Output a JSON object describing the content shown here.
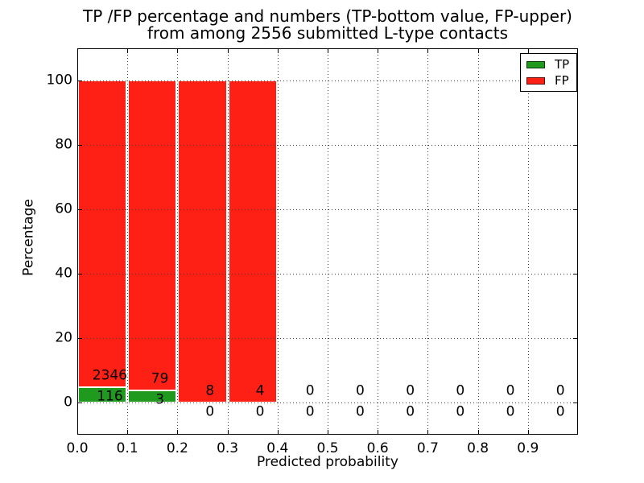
{
  "figure": {
    "title_line1": "TP /FP percentage and numbers (TP-bottom value, FP-upper)",
    "title_line2": "from among 2556 submitted L-type contacts",
    "xlabel": "Predicted probability",
    "ylabel": "Percentage"
  },
  "legend": {
    "position": "upper right",
    "items": [
      {
        "label": "TP",
        "color": "#1f9a1f"
      },
      {
        "label": "FP",
        "color": "#ff2015"
      }
    ]
  },
  "chart_data": {
    "type": "bar",
    "stacked": true,
    "normalized_to_percent": true,
    "title": "TP /FP percentage and numbers (TP-bottom value, FP-upper)\nfrom among 2556 submitted L-type contacts",
    "xlabel": "Predicted probability",
    "ylabel": "Percentage",
    "total_submitted_contacts": 2556,
    "bin_left_edges": [
      0.0,
      0.1,
      0.2,
      0.3,
      0.4,
      0.5,
      0.6,
      0.7,
      0.8,
      0.9
    ],
    "bin_width": 0.1,
    "series": [
      {
        "name": "TP",
        "color": "#1f9a1f",
        "counts": [
          116,
          3,
          0,
          0,
          0,
          0,
          0,
          0,
          0,
          0
        ],
        "percentages": [
          4.71,
          3.66,
          0,
          0,
          0,
          0,
          0,
          0,
          0,
          0
        ]
      },
      {
        "name": "FP",
        "color": "#ff2015",
        "counts": [
          2346,
          79,
          8,
          4,
          0,
          0,
          0,
          0,
          0,
          0
        ],
        "percentages": [
          95.29,
          96.34,
          100,
          100,
          0,
          0,
          0,
          0,
          0,
          0
        ]
      }
    ],
    "xticks": [
      "0.0",
      "0.1",
      "0.2",
      "0.3",
      "0.4",
      "0.5",
      "0.6",
      "0.7",
      "0.8",
      "0.9"
    ],
    "yticks": [
      "0",
      "20",
      "40",
      "60",
      "80",
      "100"
    ],
    "xlim": [
      0.0,
      1.0
    ],
    "ylim": [
      -10,
      110
    ],
    "grid": {
      "style": "dotted",
      "axisbelow": false
    },
    "legend_position": "upper right"
  }
}
